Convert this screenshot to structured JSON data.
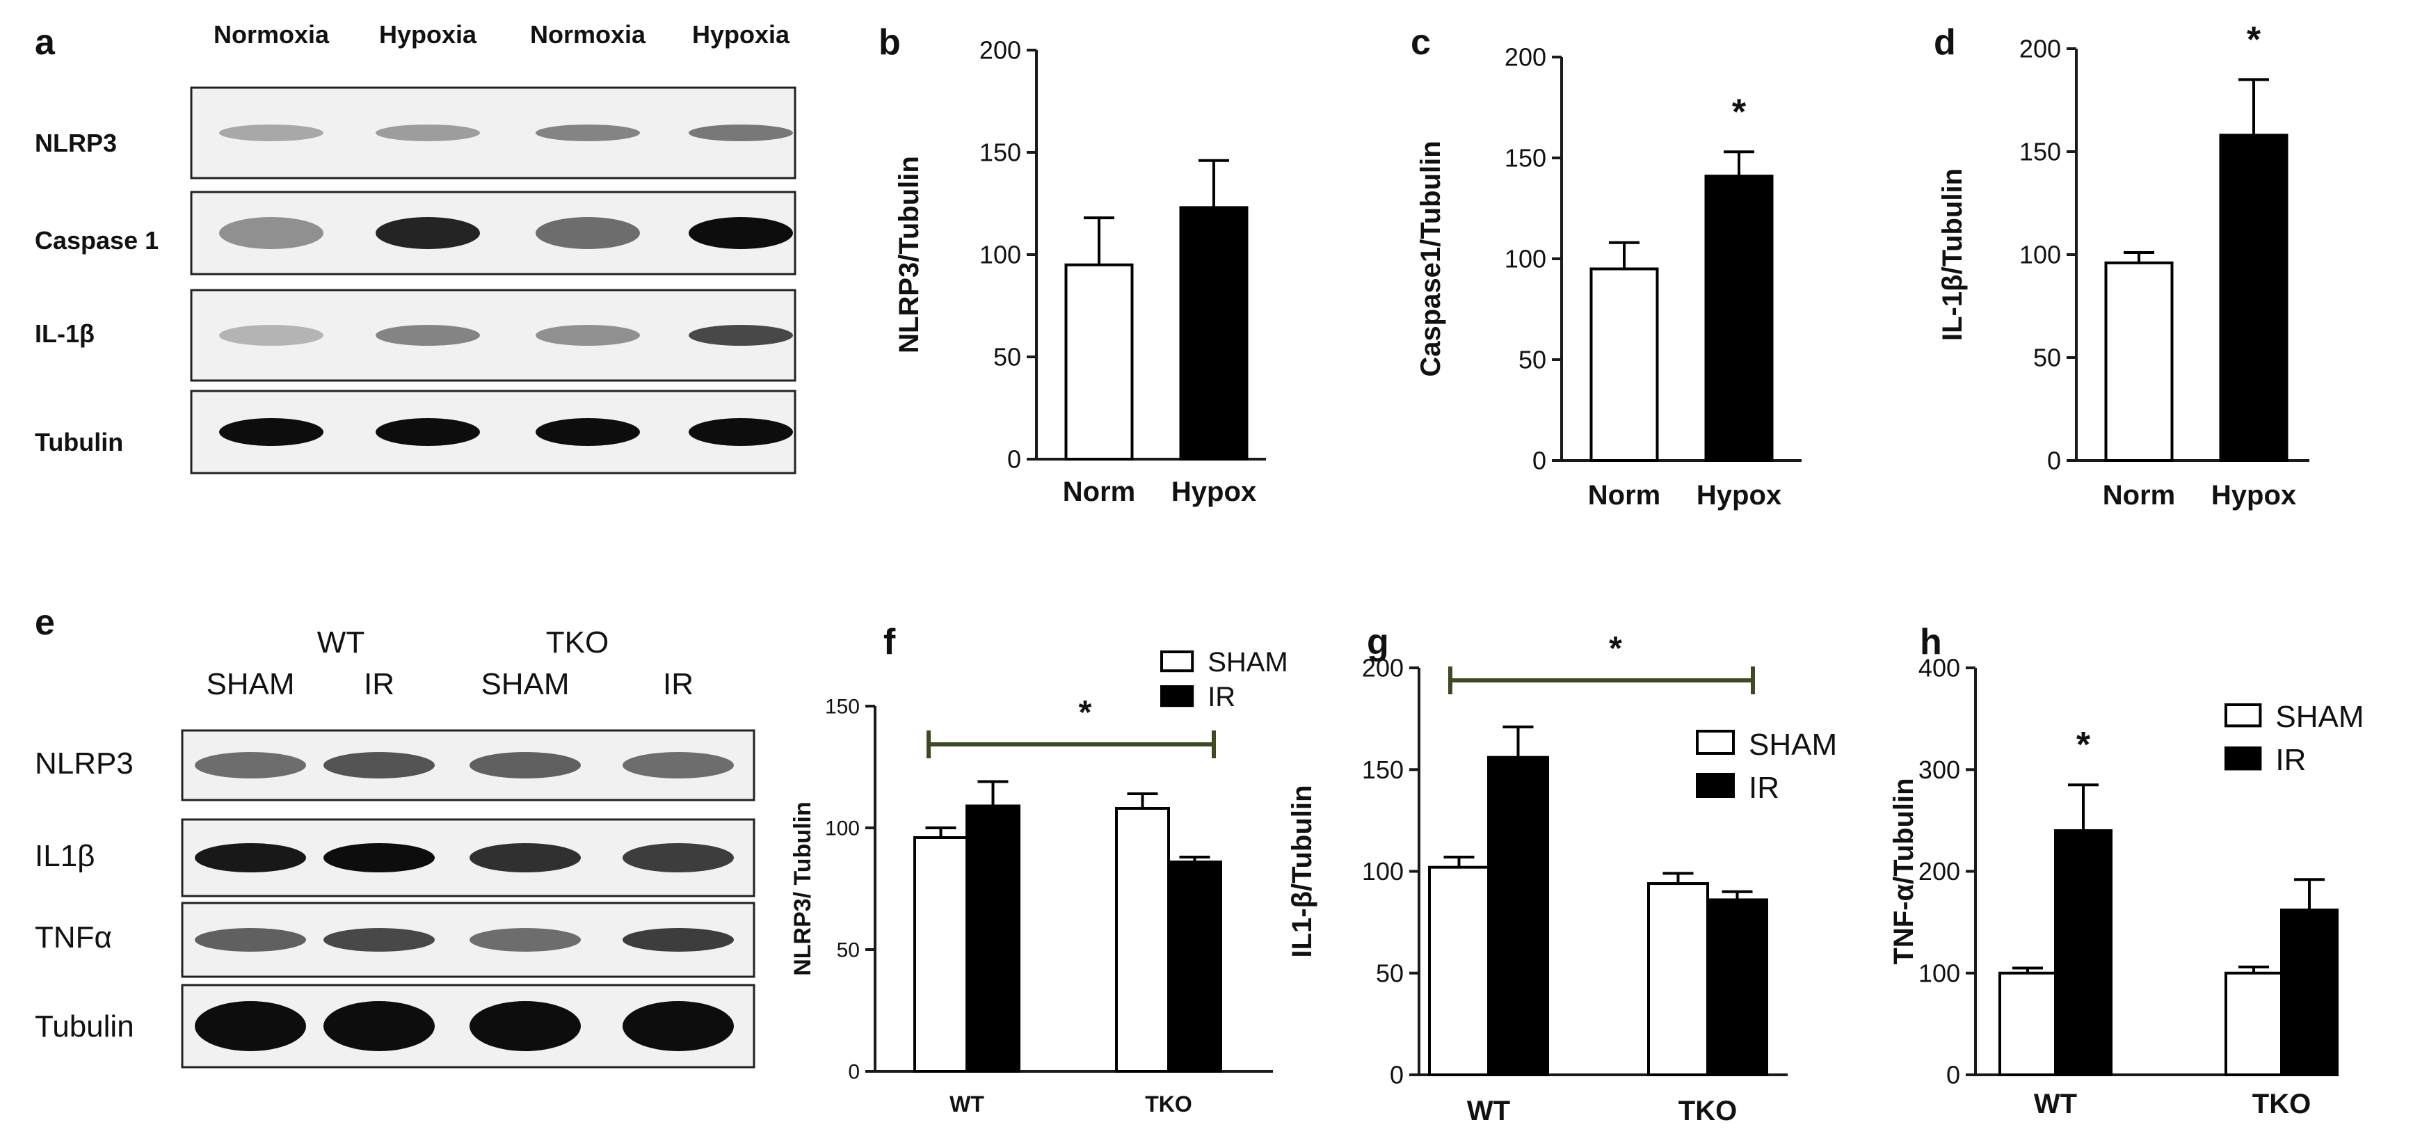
{
  "panels": [
    {
      "letter": "a"
    },
    {
      "letter": "b"
    },
    {
      "letter": "c"
    },
    {
      "letter": "d"
    },
    {
      "letter": "e"
    },
    {
      "letter": "f"
    },
    {
      "letter": "g"
    },
    {
      "letter": "h"
    }
  ],
  "blot_a": {
    "lanes": [
      "Normoxia",
      "Hypoxia",
      "Normoxia",
      "Hypoxia"
    ],
    "rows": [
      "NLRP3",
      "Caspase 1",
      "IL-1β",
      "Tubulin"
    ]
  },
  "blot_e": {
    "group_labels": [
      "WT",
      "TKO"
    ],
    "lanes": [
      "SHAM",
      "IR",
      "SHAM",
      "IR"
    ],
    "rows": [
      "NLRP3",
      "IL1β",
      "TNFα",
      "Tubulin"
    ]
  },
  "chart_data": [
    {
      "id": "b",
      "type": "bar",
      "categories": [
        "Norm",
        "Hypox"
      ],
      "series": [
        {
          "values": [
            95,
            123
          ],
          "errors": [
            23,
            23
          ]
        }
      ],
      "ylabel": "NLRP3/Tubulin",
      "ylim": [
        0,
        200
      ],
      "yticks": [
        0,
        50,
        100,
        150,
        200
      ],
      "annotations": []
    },
    {
      "id": "c",
      "type": "bar",
      "categories": [
        "Norm",
        "Hypox"
      ],
      "series": [
        {
          "values": [
            95,
            141
          ],
          "errors": [
            13,
            12
          ]
        }
      ],
      "ylabel": "Caspase1/Tubulin",
      "ylim": [
        0,
        200
      ],
      "yticks": [
        0,
        50,
        100,
        150,
        200
      ],
      "annotations": [
        {
          "text": "*",
          "category": 1
        }
      ]
    },
    {
      "id": "d",
      "type": "bar",
      "categories": [
        "Norm",
        "Hypox"
      ],
      "series": [
        {
          "values": [
            96,
            158
          ],
          "errors": [
            5,
            27
          ]
        }
      ],
      "ylabel": "IL-1β/Tubulin",
      "ylim": [
        0,
        200
      ],
      "yticks": [
        0,
        50,
        100,
        150,
        200
      ],
      "annotations": [
        {
          "text": "*",
          "category": 1
        }
      ]
    },
    {
      "id": "f",
      "type": "bar",
      "categories": [
        "WT",
        "TKO"
      ],
      "series": [
        {
          "name": "SHAM",
          "values": [
            96,
            108
          ],
          "errors": [
            4,
            6
          ]
        },
        {
          "name": "IR",
          "values": [
            109,
            86
          ],
          "errors": [
            10,
            2
          ]
        }
      ],
      "ylabel": "NLRP3/ Tubulin",
      "ylim": [
        0,
        150
      ],
      "yticks": [
        0,
        50,
        100,
        150
      ],
      "legend": "top-right",
      "annotations": [
        {
          "text": "*",
          "bracket": [
            0,
            1
          ]
        }
      ]
    },
    {
      "id": "g",
      "type": "bar",
      "categories": [
        "WT",
        "TKO"
      ],
      "series": [
        {
          "name": "SHAM",
          "values": [
            102,
            94
          ],
          "errors": [
            5,
            5
          ]
        },
        {
          "name": "IR",
          "values": [
            156,
            86
          ],
          "errors": [
            15,
            4
          ]
        }
      ],
      "ylabel": "IL1-β/Tubulin",
      "ylim": [
        0,
        200
      ],
      "yticks": [
        0,
        50,
        100,
        150,
        200
      ],
      "legend": "right",
      "annotations": [
        {
          "text": "*",
          "bracket": [
            0,
            1
          ]
        }
      ]
    },
    {
      "id": "h",
      "type": "bar",
      "categories": [
        "WT",
        "TKO"
      ],
      "series": [
        {
          "name": "SHAM",
          "values": [
            100,
            100
          ],
          "errors": [
            5,
            6
          ]
        },
        {
          "name": "IR",
          "values": [
            240,
            162
          ],
          "errors": [
            45,
            30
          ]
        }
      ],
      "ylabel": "TNF-α/Tubulin",
      "ylim": [
        0,
        400
      ],
      "yticks": [
        0,
        100,
        200,
        300,
        400
      ],
      "legend": "top-right",
      "annotations": [
        {
          "text": "*",
          "category": 0
        }
      ]
    }
  ],
  "colors": {
    "fill_dark": "#000000",
    "fill_light": "#ffffff",
    "bracket": "#3d4a22",
    "axis": "#1a1a1a"
  }
}
